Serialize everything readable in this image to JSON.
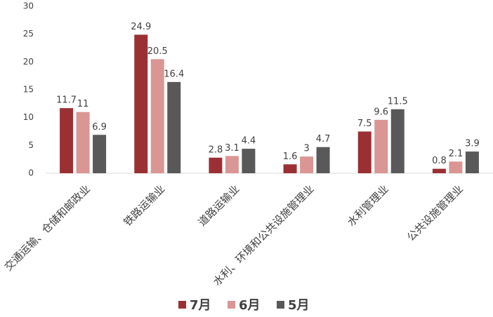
{
  "chart_data": {
    "type": "bar",
    "categories": [
      "交通运输、仓储和邮政业",
      "铁路运输业",
      "道路运输业",
      "水利、环境和公共设施管理业",
      "水利管理业",
      "公共设施管理业"
    ],
    "series": [
      {
        "name": "7月",
        "color": "#9b3034",
        "values": [
          11.7,
          24.9,
          2.8,
          1.6,
          7.5,
          0.8
        ]
      },
      {
        "name": "6月",
        "color": "#d99694",
        "values": [
          11,
          20.5,
          3.1,
          3,
          9.6,
          2.1
        ]
      },
      {
        "name": "5月",
        "color": "#595959",
        "values": [
          6.9,
          16.4,
          4.4,
          4.7,
          11.5,
          3.9
        ]
      }
    ],
    "ylim": [
      0,
      30
    ],
    "yticks": [
      0,
      5,
      10,
      15,
      20,
      25,
      30
    ],
    "grid": false,
    "legend": "bottom"
  }
}
